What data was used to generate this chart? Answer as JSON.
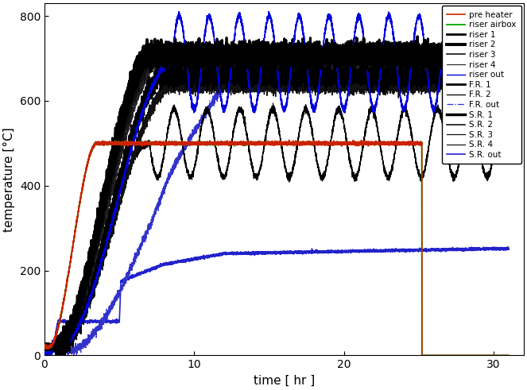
{
  "title": "",
  "xlabel": "time [ hr ]",
  "ylabel": "temperature [°C]",
  "xlim": [
    0,
    32
  ],
  "ylim": [
    0,
    830
  ],
  "xticks": [
    0,
    10,
    20,
    30
  ],
  "yticks": [
    0,
    200,
    400,
    600,
    800
  ],
  "figsize": [
    6.63,
    4.91
  ],
  "dpi": 100
}
